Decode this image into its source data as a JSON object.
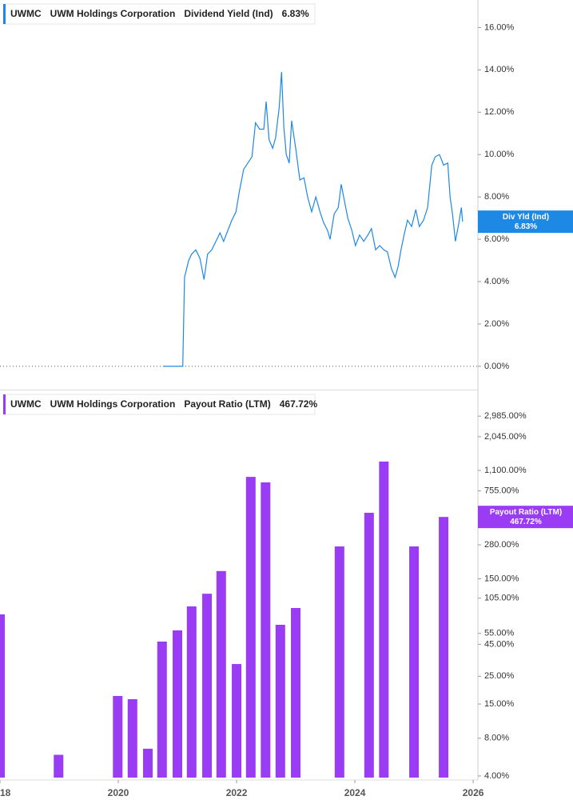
{
  "chart_data": [
    {
      "type": "line",
      "ticker": "UWMC",
      "company": "UWM Holdings Corporation",
      "x": [
        2020.77,
        2021.09,
        2021.12,
        2021.19,
        2021.24,
        2021.31,
        2021.38,
        2021.45,
        2021.51,
        2021.58,
        2021.65,
        2021.72,
        2021.78,
        2021.85,
        2021.92,
        2021.99,
        2022.05,
        2022.12,
        2022.19,
        2022.26,
        2022.32,
        2022.39,
        2022.46,
        2022.5,
        2022.55,
        2022.61,
        2022.66,
        2022.72,
        2022.76,
        2022.8,
        2022.84,
        2022.89,
        2022.93,
        2023.0,
        2023.07,
        2023.14,
        2023.2,
        2023.27,
        2023.34,
        2023.41,
        2023.47,
        2023.54,
        2023.58,
        2023.65,
        2023.72,
        2023.77,
        2023.81,
        2023.88,
        2023.95,
        2024.01,
        2024.08,
        2024.15,
        2024.22,
        2024.28,
        2024.35,
        2024.42,
        2024.49,
        2024.55,
        2024.62,
        2024.68,
        2024.73,
        2024.78,
        2024.84,
        2024.89,
        2024.96,
        2025.03,
        2025.09,
        2025.16,
        2025.23,
        2025.3,
        2025.36,
        2025.43,
        2025.5,
        2025.57,
        2025.61,
        2025.65,
        2025.7,
        2025.76,
        2025.8,
        2025.82
      ],
      "series": [
        {
          "name": "Dividend Yield (Ind)",
          "short_name": "Div Yld (Ind)",
          "color": "#1e88e5",
          "last_value": 6.83,
          "last_label": "6.83%",
          "values": [
            0,
            0,
            4.2,
            5.0,
            5.3,
            5.5,
            5.1,
            4.1,
            5.3,
            5.5,
            5.9,
            6.3,
            5.9,
            6.4,
            6.9,
            7.3,
            8.3,
            9.3,
            9.6,
            9.9,
            11.5,
            11.2,
            11.2,
            12.5,
            10.7,
            10.3,
            10.8,
            12.2,
            13.9,
            11.3,
            10.0,
            9.6,
            11.6,
            10.3,
            8.8,
            8.9,
            8.0,
            7.3,
            8.0,
            7.3,
            6.8,
            6.4,
            6.0,
            7.2,
            7.5,
            8.6,
            8.0,
            7.0,
            6.4,
            5.7,
            6.2,
            5.9,
            6.2,
            6.5,
            5.5,
            5.7,
            5.5,
            5.4,
            4.6,
            4.2,
            4.7,
            5.5,
            6.3,
            6.9,
            6.6,
            7.4,
            6.6,
            6.9,
            7.5,
            9.5,
            9.9,
            10.0,
            9.5,
            9.6,
            8.0,
            7.2,
            5.9,
            6.8,
            7.5,
            6.83
          ]
        }
      ],
      "xlim": [
        2018,
        2026.08
      ],
      "ylim": [
        -1.1,
        17.3
      ],
      "yticks": [
        {
          "value": 0,
          "label": "0.00%"
        },
        {
          "value": 2,
          "label": "2.00%"
        },
        {
          "value": 4,
          "label": "4.00%"
        },
        {
          "value": 6,
          "label": "6.00%"
        },
        {
          "value": 8,
          "label": "8.00%"
        },
        {
          "value": 10,
          "label": "10.00%"
        },
        {
          "value": 12,
          "label": "12.00%"
        },
        {
          "value": 14,
          "label": "14.00%"
        },
        {
          "value": 16,
          "label": "16.00%"
        }
      ],
      "zero_line": true
    },
    {
      "type": "bar",
      "ticker": "UWMC",
      "company": "UWM Holdings Corporation",
      "yscale": "log",
      "x": [
        2018.0,
        2018.99,
        2019.99,
        2020.24,
        2020.5,
        2020.74,
        2021.0,
        2021.24,
        2021.5,
        2021.74,
        2022.0,
        2022.24,
        2022.49,
        2022.74,
        2023.0,
        2023.74,
        2024.24,
        2024.49,
        2025.0,
        2025.5
      ],
      "series": [
        {
          "name": "Payout Ratio (LTM)",
          "short_name": "Payout Ratio (LTM)",
          "color": "#9b3cf5",
          "last_value": 467.72,
          "last_label": "467.72%",
          "values": [
            78,
            5.9,
            17.4,
            16.4,
            6.6,
            47.3,
            58.1,
            90.3,
            114,
            173,
            31.3,
            977,
            883,
            64.4,
            87.7,
            272,
            505,
            1294,
            272,
            467.72
          ]
        }
      ],
      "xlim": [
        2018,
        2026.08
      ],
      "ylim": [
        3.88,
        4790
      ],
      "xticks": [
        2018,
        2020,
        2022,
        2024,
        2026
      ],
      "yticks": [
        {
          "value": 4,
          "label": "4.00%"
        },
        {
          "value": 8,
          "label": "8.00%"
        },
        {
          "value": 15,
          "label": "15.00%"
        },
        {
          "value": 25,
          "label": "25.00%"
        },
        {
          "value": 45,
          "label": "45.00%"
        },
        {
          "value": 55,
          "label": "55.00%"
        },
        {
          "value": 105,
          "label": "105.00%"
        },
        {
          "value": 150,
          "label": "150.00%"
        },
        {
          "value": 280,
          "label": "280.00%"
        },
        {
          "value": 755,
          "label": "755.00%"
        },
        {
          "value": 1100,
          "label": "1,100.00%"
        },
        {
          "value": 2045,
          "label": "2,045.00%"
        },
        {
          "value": 2985,
          "label": "2,985.00%"
        }
      ]
    }
  ]
}
